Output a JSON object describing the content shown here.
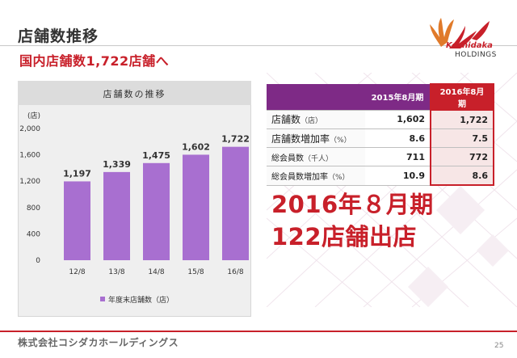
{
  "header": {
    "title": "店舗数推移",
    "subtitle": "国内店舗数1,722店舗へ"
  },
  "logo": {
    "brand": "Koshidaka",
    "sub": "HOLDINGS"
  },
  "chart_data": {
    "type": "bar",
    "title": "店舗数の推移",
    "ylabel": "(店)",
    "categories": [
      "12/8",
      "13/8",
      "14/8",
      "15/8",
      "16/8"
    ],
    "values": [
      1197,
      1339,
      1475,
      1602,
      1722
    ],
    "value_labels": [
      "1,197",
      "1,339",
      "1,475",
      "1,602",
      "1,722"
    ],
    "ylim": [
      0,
      2000
    ],
    "yticks": [
      "0",
      "400",
      "800",
      "1,200",
      "1,600",
      "2,000"
    ],
    "legend": "年度末店舗数（店）",
    "legend_position": "bottom",
    "grid": false,
    "bar_color": "#a86fd0"
  },
  "table": {
    "headers": [
      "2015年8月期",
      "2016年8月期"
    ],
    "rows": [
      {
        "label": "店舗数",
        "note": "（店）",
        "v1": "1,602",
        "v2": "1,722"
      },
      {
        "label": "店舗数増加率",
        "note": "（%）",
        "v1": "8.6",
        "v2": "7.5"
      },
      {
        "label": "総会員数",
        "note": "（千人）",
        "v1": "711",
        "v2": "772"
      },
      {
        "label": "総会員数増加率",
        "note": "（%）",
        "v1": "10.9",
        "v2": "8.6"
      }
    ]
  },
  "highlight": {
    "line1": "2016年８月期",
    "line2": "122店舗出店"
  },
  "footer": {
    "company": "株式会社コシダカホールディングス",
    "page": "25"
  },
  "colors": {
    "accent_red": "#c8202a",
    "table_header_purple": "#7e2a86",
    "bar_purple": "#a86fd0"
  }
}
